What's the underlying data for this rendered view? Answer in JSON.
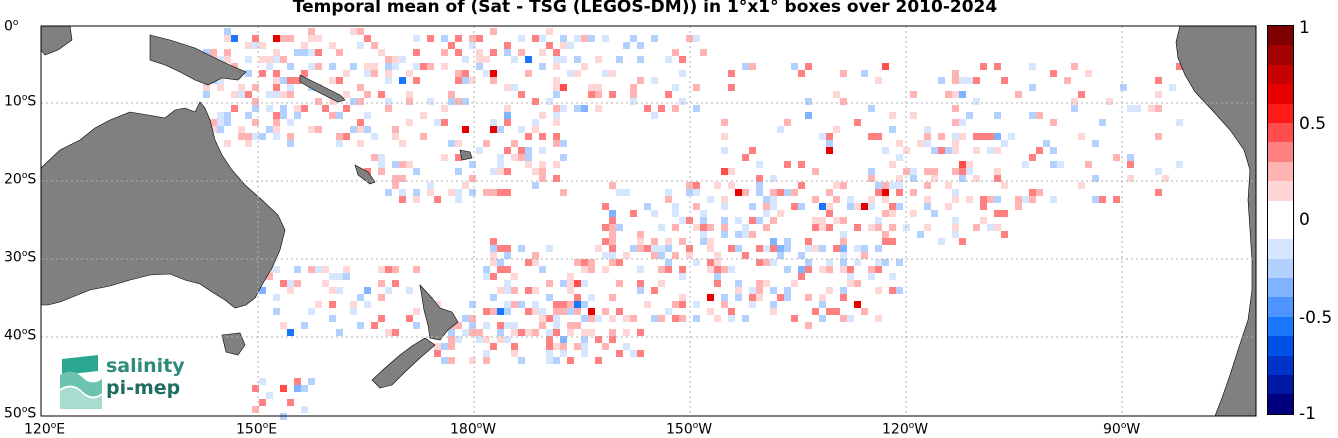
{
  "title": "Temporal mean of (Sat - TSG (LEGOS-DM)) in 1°x1° boxes over 2010-2024",
  "map": {
    "lon_range": [
      "120°E",
      "70°W"
    ],
    "lat_range": [
      "0°",
      "50°S"
    ],
    "land_color": "#808080",
    "grid": "dotted"
  },
  "y_ticks": [
    {
      "deg": "0",
      "sup": "o",
      "hemi": ""
    },
    {
      "deg": "10",
      "sup": "o",
      "hemi": "S"
    },
    {
      "deg": "20",
      "sup": "o",
      "hemi": "S"
    },
    {
      "deg": "30",
      "sup": "o",
      "hemi": "S"
    },
    {
      "deg": "40",
      "sup": "o",
      "hemi": "S"
    },
    {
      "deg": "50",
      "sup": "o",
      "hemi": "S"
    }
  ],
  "x_ticks": [
    {
      "deg": "120",
      "sup": "o",
      "hemi": "E"
    },
    {
      "deg": "150",
      "sup": "o",
      "hemi": "E"
    },
    {
      "deg": "180",
      "sup": "o",
      "hemi": "W"
    },
    {
      "deg": "150",
      "sup": "o",
      "hemi": "W"
    },
    {
      "deg": "120",
      "sup": "o",
      "hemi": "W"
    },
    {
      "deg": "90",
      "sup": "o",
      "hemi": "W"
    }
  ],
  "colorbar": {
    "labels": [
      "1",
      "0.5",
      "0",
      "-0.5",
      "-1"
    ],
    "colors_top_to_bottom": [
      "#7f0000",
      "#a30000",
      "#c70000",
      "#e60000",
      "#ff1a1a",
      "#ff4d4d",
      "#ff8080",
      "#ffb3b3",
      "#ffd6d6",
      "#ffffff",
      "#ffffff",
      "#d6e6ff",
      "#b3d1ff",
      "#80b3ff",
      "#4d94ff",
      "#1a75ff",
      "#0050e6",
      "#0033c7",
      "#0019a3",
      "#00007f"
    ]
  },
  "logo": {
    "line1": "salinity",
    "line2": "pi-mep"
  }
}
